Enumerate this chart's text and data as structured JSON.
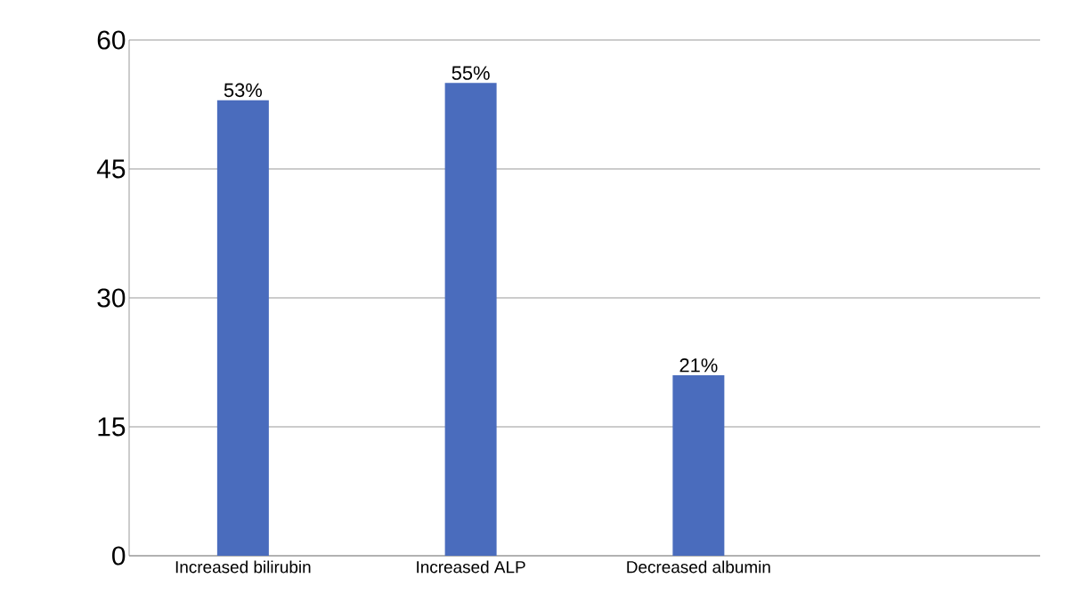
{
  "chart_data": {
    "type": "bar",
    "categories": [
      "Increased bilirubin",
      "Increased ALP",
      "Decreased albumin",
      null
    ],
    "values": [
      53,
      55,
      21,
      null
    ],
    "color": "#4a6cbd",
    "value_labels": [
      "53%",
      "55%",
      "21%",
      null
    ],
    "ylim": [
      0,
      60
    ],
    "yticks": [
      0,
      15,
      30,
      45,
      60
    ],
    "grid": "y"
  }
}
